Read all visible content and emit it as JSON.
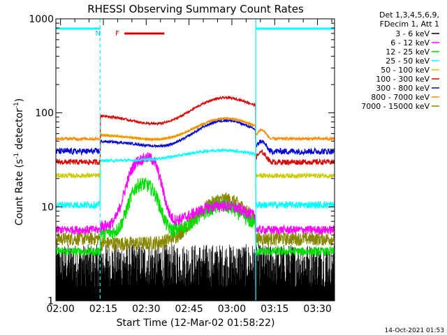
{
  "chart_data": {
    "type": "line",
    "title": "RHESSI Observing Summary Count Rates",
    "ylabel_base": "Count Rate (s",
    "ylabel_sup1": "-1",
    "ylabel_mid": " detector",
    "ylabel_sup2": "-1",
    "ylabel_end": ")",
    "xlabel": "Start Time (12-Mar-02 01:58:22)",
    "yscale": "log",
    "ylim": [
      1,
      1000
    ],
    "xlim_minutes": [
      0,
      97.6
    ],
    "x_ticks": [
      {
        "label": "02:00",
        "minute": 1.63
      },
      {
        "label": "02:15",
        "minute": 16.63
      },
      {
        "label": "02:30",
        "minute": 31.63
      },
      {
        "label": "02:45",
        "minute": 46.63
      },
      {
        "label": "03:00",
        "minute": 61.63
      },
      {
        "label": "03:15",
        "minute": 76.63
      },
      {
        "label": "03:30",
        "minute": 91.63
      }
    ],
    "y_ticks": [
      {
        "label": "1",
        "value": 1
      },
      {
        "label": "10",
        "value": 10
      },
      {
        "label": "100",
        "value": 100
      },
      {
        "label": "1000",
        "value": 1000
      }
    ],
    "legend_header": [
      "Det 1,3,4,5,6,9,",
      "FDecim 1, Att 1"
    ],
    "series": [
      {
        "name": "3 - 6 keV",
        "color": "#000000",
        "key": "s1"
      },
      {
        "name": "6 - 12 keV",
        "color": "#ff00ff",
        "key": "s2"
      },
      {
        "name": "12 - 25 keV",
        "color": "#00dd00",
        "key": "s3"
      },
      {
        "name": "25 - 50 keV",
        "color": "#00ffff",
        "key": "s4"
      },
      {
        "name": "50 - 100 keV",
        "color": "#cccc00",
        "key": "s5"
      },
      {
        "name": "100 - 300 keV",
        "color": "#dd0000",
        "key": "s6"
      },
      {
        "name": "300 - 800 keV",
        "color": "#0000dd",
        "key": "s7"
      },
      {
        "name": "800 - 7000 keV",
        "color": "#ff8800",
        "key": "s8"
      },
      {
        "name": "7000 - 15000 keV",
        "color": "#888800",
        "key": "s9"
      }
    ],
    "night_intervals_minutes": [
      [
        -1,
        15.5
      ],
      [
        70.0,
        99
      ]
    ],
    "flags": [
      {
        "label": "N",
        "color": "#00cccc",
        "start": 17,
        "end": 17
      },
      {
        "label": "F",
        "color": "#dd0000",
        "start": 24,
        "end": 38
      }
    ],
    "footer_date": "14-Oct-2021 01:53"
  }
}
